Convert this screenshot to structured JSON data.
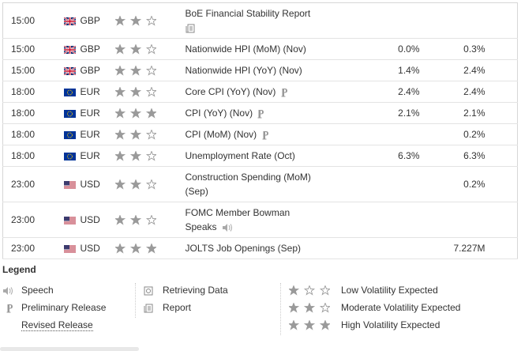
{
  "calendar": {
    "rows": [
      {
        "time": "15:00",
        "flag": "uk",
        "currency": "GBP",
        "volatility": 2,
        "event": "BoE Financial Stability Report",
        "icon": "report",
        "actual": "",
        "forecast": ""
      },
      {
        "time": "15:00",
        "flag": "uk",
        "currency": "GBP",
        "volatility": 2,
        "event": "Nationwide HPI (MoM) (Nov)",
        "actual": "0.0%",
        "forecast": "0.3%"
      },
      {
        "time": "15:00",
        "flag": "uk",
        "currency": "GBP",
        "volatility": 2,
        "event": "Nationwide HPI (YoY) (Nov)",
        "actual": "1.4%",
        "forecast": "2.4%"
      },
      {
        "time": "18:00",
        "flag": "eu",
        "currency": "EUR",
        "volatility": 2,
        "event": "Core CPI (YoY) (Nov)",
        "icon": "preliminary",
        "actual": "2.4%",
        "forecast": "2.4%"
      },
      {
        "time": "18:00",
        "flag": "eu",
        "currency": "EUR",
        "volatility": 3,
        "event": "CPI (YoY) (Nov)",
        "icon": "preliminary",
        "actual": "2.1%",
        "forecast": "2.1%"
      },
      {
        "time": "18:00",
        "flag": "eu",
        "currency": "EUR",
        "volatility": 2,
        "event": "CPI (MoM) (Nov)",
        "icon": "preliminary",
        "actual": "",
        "forecast": "0.2%"
      },
      {
        "time": "18:00",
        "flag": "eu",
        "currency": "EUR",
        "volatility": 2,
        "event": "Unemployment Rate (Oct)",
        "actual": "6.3%",
        "forecast": "6.3%"
      },
      {
        "time": "23:00",
        "flag": "us",
        "currency": "USD",
        "volatility": 2,
        "event": "Construction Spending (MoM) (Sep)",
        "actual": "",
        "forecast": "0.2%"
      },
      {
        "time": "23:00",
        "flag": "us",
        "currency": "USD",
        "volatility": 2,
        "event": "FOMC Member Bowman Speaks",
        "icon": "speech",
        "actual": "",
        "forecast": ""
      },
      {
        "time": "23:00",
        "flag": "us",
        "currency": "USD",
        "volatility": 3,
        "event": "JOLTS Job Openings (Sep)",
        "actual": "",
        "forecast": "7.227M"
      }
    ]
  },
  "legend": {
    "title": "Legend",
    "columns": [
      [
        {
          "icon": "speech",
          "label": "Speech"
        },
        {
          "icon": "preliminary",
          "label": "Preliminary Release"
        },
        {
          "icon": "revised",
          "label": "Revised Release"
        }
      ],
      [
        {
          "icon": "retrieving",
          "label": "Retrieving Data"
        },
        {
          "icon": "report",
          "label": "Report"
        }
      ],
      [
        {
          "stars": 1,
          "label": "Low Volatility Expected"
        },
        {
          "stars": 2,
          "label": "Moderate Volatility Expected"
        },
        {
          "stars": 3,
          "label": "High Volatility Expected"
        }
      ]
    ]
  }
}
